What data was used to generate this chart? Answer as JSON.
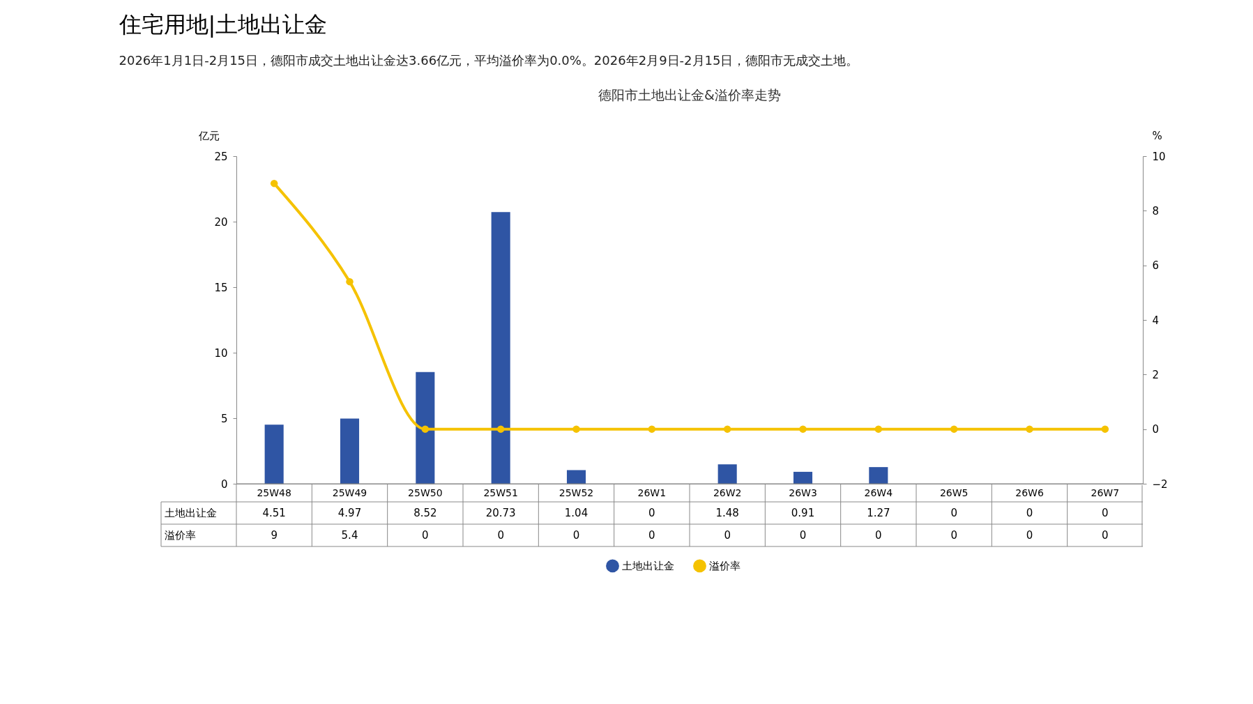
{
  "chart_data": {
    "type": "bar",
    "title": "德阳市土地出让金&溢价率走势",
    "annotations": [
      "住宅用地|土地出让金",
      "2026年1月1日-2月15日，德阳市成交土地出让金达3.66亿元，平均溢价率为0.0%。2026年2月9日-2月15日，德阳市无成交土地。"
    ],
    "categories": [
      "25W48",
      "25W49",
      "25W50",
      "25W51",
      "25W52",
      "26W1",
      "26W2",
      "26W3",
      "26W4",
      "26W5",
      "26W6",
      "26W7"
    ],
    "series": [
      {
        "name": "土地出让金",
        "color": "#2f55a4",
        "values": [
          4.51,
          4.97,
          8.52,
          20.73,
          1.04,
          0,
          1.48,
          0.91,
          1.27,
          0,
          0,
          0
        ]
      },
      {
        "name": "溢价率",
        "type": "line",
        "axis": "y2",
        "color": "#f5c200",
        "values": [
          9,
          5.4,
          0,
          0,
          0,
          0,
          0,
          0,
          0,
          0,
          0,
          0
        ]
      }
    ],
    "ylabel": "亿元",
    "y2label": "%",
    "ylim": [
      0,
      25
    ],
    "yticks": [
      0,
      5,
      10,
      15,
      20,
      25
    ],
    "y2lim": [
      -2,
      10
    ],
    "y2ticks": [
      -2,
      0,
      2,
      4,
      6,
      8,
      10
    ],
    "data_labels": true,
    "legend": "bottom",
    "marker": "circle",
    "grid": false
  }
}
